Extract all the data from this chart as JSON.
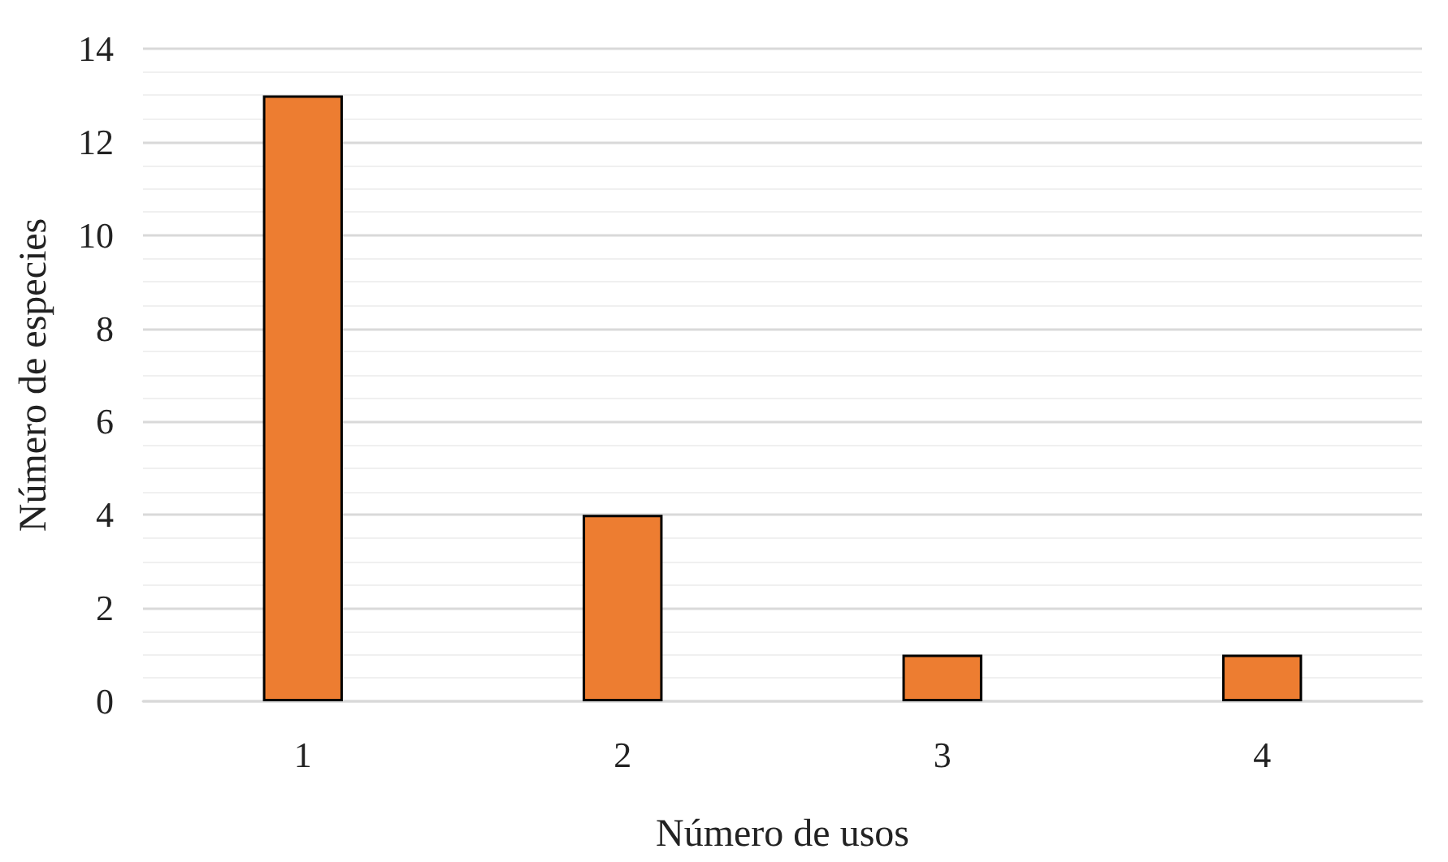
{
  "chart_data": {
    "type": "bar",
    "xlabel": "Número de usos",
    "ylabel": "Número de especies",
    "categories": [
      "1",
      "2",
      "3",
      "4"
    ],
    "values": [
      13,
      4,
      1,
      1
    ],
    "color": "#ed7d31",
    "ylim": [
      0,
      14
    ],
    "yticks": [
      0,
      2,
      4,
      6,
      8,
      10,
      12,
      14
    ],
    "grid": "y"
  }
}
